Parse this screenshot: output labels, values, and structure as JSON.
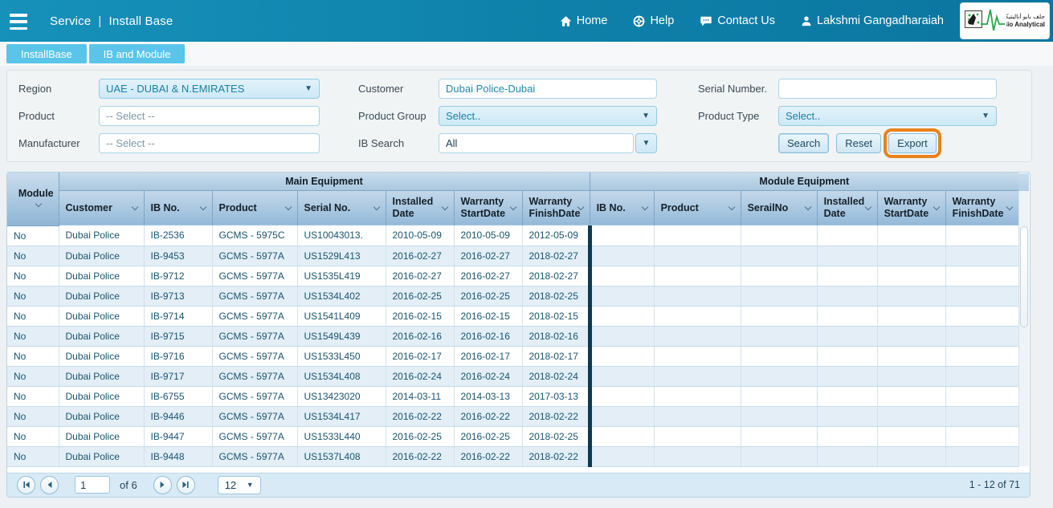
{
  "header": {
    "title_left": "Service",
    "title_sep": "|",
    "title_right": "Install Base",
    "nav": [
      {
        "label": "Home"
      },
      {
        "label": "Help"
      },
      {
        "label": "Contact Us"
      }
    ],
    "user": "Lakshmi Gangadharaiah",
    "logo": {
      "arabic": "جلف بايو أناليتيكل",
      "english": "Gulf Bio Analytical"
    }
  },
  "tabs": [
    {
      "label": "InstallBase"
    },
    {
      "label": "IB and Module"
    }
  ],
  "filters": {
    "region": {
      "label": "Region",
      "value": "UAE - DUBAI & N.EMIRATES"
    },
    "product": {
      "label": "Product",
      "placeholder": "-- Select --"
    },
    "manufacturer": {
      "label": "Manufacturer",
      "placeholder": "-- Select --"
    },
    "customer": {
      "label": "Customer",
      "value": "Dubai Police-Dubai"
    },
    "product_group": {
      "label": "Product Group",
      "value": "Select.."
    },
    "ib_search": {
      "label": "IB Search",
      "value": "All"
    },
    "serial_number": {
      "label": "Serial Number.",
      "value": ""
    },
    "product_type": {
      "label": "Product Type",
      "value": "Select.."
    },
    "buttons": {
      "search": "Search",
      "reset": "Reset",
      "export": "Export"
    }
  },
  "table": {
    "module_col": "Module",
    "groups": {
      "main": "Main Equipment",
      "module": "Module Equipment"
    },
    "columns_main": [
      "Customer",
      "IB No.",
      "Product",
      "Serial No.",
      "Installed Date",
      "Warranty StartDate",
      "Warranty FinishDate"
    ],
    "columns_module": [
      "IB No.",
      "Product",
      "SerailNo",
      "Installed Date",
      "Warranty StartDate",
      "Warranty FinishDate"
    ],
    "rows": [
      [
        "No",
        "Dubai Police",
        "IB-2536",
        "GCMS - 5975C",
        "US10043013.",
        "2010-05-09",
        "2010-05-09",
        "2012-05-09",
        "",
        "",
        "",
        "",
        "",
        ""
      ],
      [
        "No",
        "Dubai Police",
        "IB-9453",
        "GCMS - 5977A",
        "US1529L413",
        "2016-02-27",
        "2016-02-27",
        "2018-02-27",
        "",
        "",
        "",
        "",
        "",
        ""
      ],
      [
        "No",
        "Dubai Police",
        "IB-9712",
        "GCMS - 5977A",
        "US1535L419",
        "2016-02-27",
        "2016-02-27",
        "2018-02-27",
        "",
        "",
        "",
        "",
        "",
        ""
      ],
      [
        "No",
        "Dubai Police",
        "IB-9713",
        "GCMS - 5977A",
        "US1534L402",
        "2016-02-25",
        "2016-02-25",
        "2018-02-25",
        "",
        "",
        "",
        "",
        "",
        ""
      ],
      [
        "No",
        "Dubai Police",
        "IB-9714",
        "GCMS - 5977A",
        "US1541L409",
        "2016-02-15",
        "2016-02-15",
        "2018-02-15",
        "",
        "",
        "",
        "",
        "",
        ""
      ],
      [
        "No",
        "Dubai Police",
        "IB-9715",
        "GCMS - 5977A",
        "US1549L439",
        "2016-02-16",
        "2016-02-16",
        "2018-02-16",
        "",
        "",
        "",
        "",
        "",
        ""
      ],
      [
        "No",
        "Dubai Police",
        "IB-9716",
        "GCMS - 5977A",
        "US1533L450",
        "2016-02-17",
        "2016-02-17",
        "2018-02-17",
        "",
        "",
        "",
        "",
        "",
        ""
      ],
      [
        "No",
        "Dubai Police",
        "IB-9717",
        "GCMS - 5977A",
        "US1534L408",
        "2016-02-24",
        "2016-02-24",
        "2018-02-24",
        "",
        "",
        "",
        "",
        "",
        ""
      ],
      [
        "No",
        "Dubai Police",
        "IB-6755",
        "GCMS - 5977A",
        "US13423020",
        "2014-03-11",
        "2014-03-13",
        "2017-03-13",
        "",
        "",
        "",
        "",
        "",
        ""
      ],
      [
        "No",
        "Dubai Police",
        "IB-9446",
        "GCMS - 5977A",
        "US1534L417",
        "2016-02-22",
        "2016-02-22",
        "2018-02-22",
        "",
        "",
        "",
        "",
        "",
        ""
      ],
      [
        "No",
        "Dubai Police",
        "IB-9447",
        "GCMS - 5977A",
        "US1533L440",
        "2016-02-25",
        "2016-02-25",
        "2018-02-25",
        "",
        "",
        "",
        "",
        "",
        ""
      ],
      [
        "No",
        "Dubai Police",
        "IB-9448",
        "GCMS - 5977A",
        "US1537L408",
        "2016-02-22",
        "2016-02-22",
        "2018-02-22",
        "",
        "",
        "",
        "",
        "",
        ""
      ]
    ]
  },
  "pagination": {
    "page": "1",
    "of": "of 6",
    "page_size": "12",
    "range": "1 - 12 of 71"
  },
  "colors": {
    "header_teal": "#0e80a9",
    "tab_blue": "#5ac5e9",
    "accent_orange": "#e8821c",
    "grid_header_blue": "#94b9d8",
    "row_alt": "#e3eef7",
    "text_teal": "#1d89ad",
    "divider_navy": "#0c3a55"
  }
}
